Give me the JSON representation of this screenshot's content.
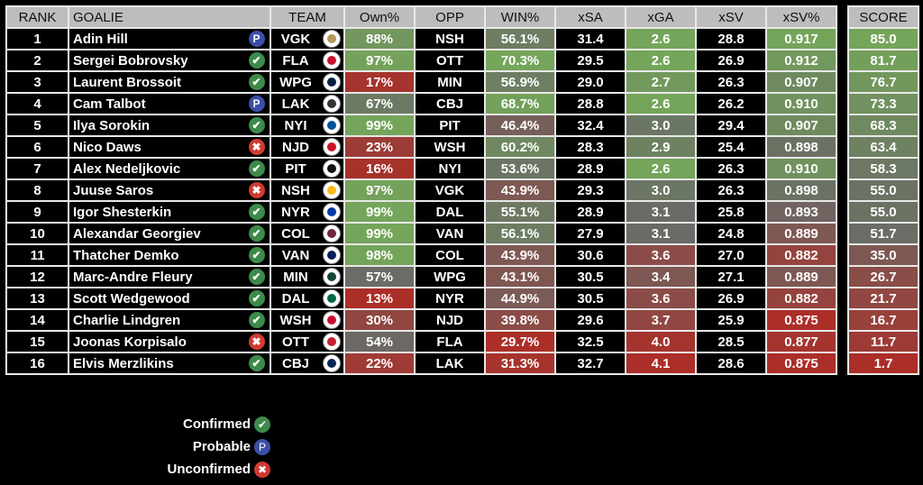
{
  "headers": {
    "rank": "RANK",
    "goalie": "GOALIE",
    "team": "TEAM",
    "own": "Own%",
    "opp": "OPP",
    "win": "WIN%",
    "xsa": "xSA",
    "xga": "xGA",
    "xsv": "xSV",
    "xsvp": "xSV%",
    "score": "SCORE"
  },
  "status_icons": {
    "C": {
      "glyph": "✔",
      "color": "#3d8a4a",
      "label": "Confirmed",
      "icon": "check-icon"
    },
    "P": {
      "glyph": "P",
      "color": "#3b4fa8",
      "label": "Probable",
      "icon": "probable-icon"
    },
    "U": {
      "glyph": "✖",
      "color": "#d03a30",
      "label": "Unconfirmed",
      "icon": "x-icon"
    }
  },
  "colors": {
    "green": "#74a55a",
    "gray": "#6a6a66",
    "red": "#ac2e28"
  },
  "rows": [
    {
      "rank": "1",
      "goalie": "Adin Hill",
      "status": "P",
      "team": "VGK",
      "logo": "#b4975a",
      "own": "88%",
      "opp": "NSH",
      "win": "56.1%",
      "xsa": "31.4",
      "xga": "2.6",
      "xsv": "28.8",
      "xsvp": "0.917",
      "score": "85.0"
    },
    {
      "rank": "2",
      "goalie": "Sergei Bobrovsky",
      "status": "C",
      "team": "FLA",
      "logo": "#c8102e",
      "own": "97%",
      "opp": "OTT",
      "win": "70.3%",
      "xsa": "29.5",
      "xga": "2.6",
      "xsv": "26.9",
      "xsvp": "0.912",
      "score": "81.7"
    },
    {
      "rank": "3",
      "goalie": "Laurent Brossoit",
      "status": "C",
      "team": "WPG",
      "logo": "#041e42",
      "own": "17%",
      "opp": "MIN",
      "win": "56.9%",
      "xsa": "29.0",
      "xga": "2.7",
      "xsv": "26.3",
      "xsvp": "0.907",
      "score": "76.7"
    },
    {
      "rank": "4",
      "goalie": "Cam Talbot",
      "status": "P",
      "team": "LAK",
      "logo": "#333333",
      "own": "67%",
      "opp": "CBJ",
      "win": "68.7%",
      "xsa": "28.8",
      "xga": "2.6",
      "xsv": "26.2",
      "xsvp": "0.910",
      "score": "73.3"
    },
    {
      "rank": "5",
      "goalie": "Ilya Sorokin",
      "status": "C",
      "team": "NYI",
      "logo": "#00539b",
      "own": "99%",
      "opp": "PIT",
      "win": "46.4%",
      "xsa": "32.4",
      "xga": "3.0",
      "xsv": "29.4",
      "xsvp": "0.907",
      "score": "68.3"
    },
    {
      "rank": "6",
      "goalie": "Nico Daws",
      "status": "U",
      "team": "NJD",
      "logo": "#ce1126",
      "own": "23%",
      "opp": "WSH",
      "win": "60.2%",
      "xsa": "28.3",
      "xga": "2.9",
      "xsv": "25.4",
      "xsvp": "0.898",
      "score": "63.4"
    },
    {
      "rank": "7",
      "goalie": "Alex Nedeljkovic",
      "status": "C",
      "team": "PIT",
      "logo": "#111111",
      "own": "16%",
      "opp": "NYI",
      "win": "53.6%",
      "xsa": "28.9",
      "xga": "2.6",
      "xsv": "26.3",
      "xsvp": "0.910",
      "score": "58.3"
    },
    {
      "rank": "8",
      "goalie": "Juuse Saros",
      "status": "U",
      "team": "NSH",
      "logo": "#ffb81c",
      "own": "97%",
      "opp": "VGK",
      "win": "43.9%",
      "xsa": "29.3",
      "xga": "3.0",
      "xsv": "26.3",
      "xsvp": "0.898",
      "score": "55.0"
    },
    {
      "rank": "9",
      "goalie": "Igor Shesterkin",
      "status": "C",
      "team": "NYR",
      "logo": "#0038a8",
      "own": "99%",
      "opp": "DAL",
      "win": "55.1%",
      "xsa": "28.9",
      "xga": "3.1",
      "xsv": "25.8",
      "xsvp": "0.893",
      "score": "55.0"
    },
    {
      "rank": "10",
      "goalie": "Alexandar Georgiev",
      "status": "C",
      "team": "COL",
      "logo": "#6f263d",
      "own": "99%",
      "opp": "VAN",
      "win": "56.1%",
      "xsa": "27.9",
      "xga": "3.1",
      "xsv": "24.8",
      "xsvp": "0.889",
      "score": "51.7"
    },
    {
      "rank": "11",
      "goalie": "Thatcher Demko",
      "status": "C",
      "team": "VAN",
      "logo": "#00205b",
      "own": "98%",
      "opp": "COL",
      "win": "43.9%",
      "xsa": "30.6",
      "xga": "3.6",
      "xsv": "27.0",
      "xsvp": "0.882",
      "score": "35.0"
    },
    {
      "rank": "12",
      "goalie": "Marc-Andre Fleury",
      "status": "C",
      "team": "MIN",
      "logo": "#154734",
      "own": "57%",
      "opp": "WPG",
      "win": "43.1%",
      "xsa": "30.5",
      "xga": "3.4",
      "xsv": "27.1",
      "xsvp": "0.889",
      "score": "26.7"
    },
    {
      "rank": "13",
      "goalie": "Scott Wedgewood",
      "status": "C",
      "team": "DAL",
      "logo": "#006847",
      "own": "13%",
      "opp": "NYR",
      "win": "44.9%",
      "xsa": "30.5",
      "xga": "3.6",
      "xsv": "26.9",
      "xsvp": "0.882",
      "score": "21.7"
    },
    {
      "rank": "14",
      "goalie": "Charlie Lindgren",
      "status": "C",
      "team": "WSH",
      "logo": "#c8102e",
      "own": "30%",
      "opp": "NJD",
      "win": "39.8%",
      "xsa": "29.6",
      "xga": "3.7",
      "xsv": "25.9",
      "xsvp": "0.875",
      "score": "16.7"
    },
    {
      "rank": "15",
      "goalie": "Joonas Korpisalo",
      "status": "U",
      "team": "OTT",
      "logo": "#c52032",
      "own": "54%",
      "opp": "FLA",
      "win": "29.7%",
      "xsa": "32.5",
      "xga": "4.0",
      "xsv": "28.5",
      "xsvp": "0.877",
      "score": "11.7"
    },
    {
      "rank": "16",
      "goalie": "Elvis Merzlikins",
      "status": "C",
      "team": "CBJ",
      "logo": "#002654",
      "own": "22%",
      "opp": "LAK",
      "win": "31.3%",
      "xsa": "32.7",
      "xga": "4.1",
      "xsv": "28.6",
      "xsvp": "0.875",
      "score": "1.7"
    }
  ],
  "legend": [
    {
      "key": "C",
      "label": "Confirmed"
    },
    {
      "key": "P",
      "label": "Probable"
    },
    {
      "key": "U",
      "label": "Unconfirmed"
    }
  ]
}
